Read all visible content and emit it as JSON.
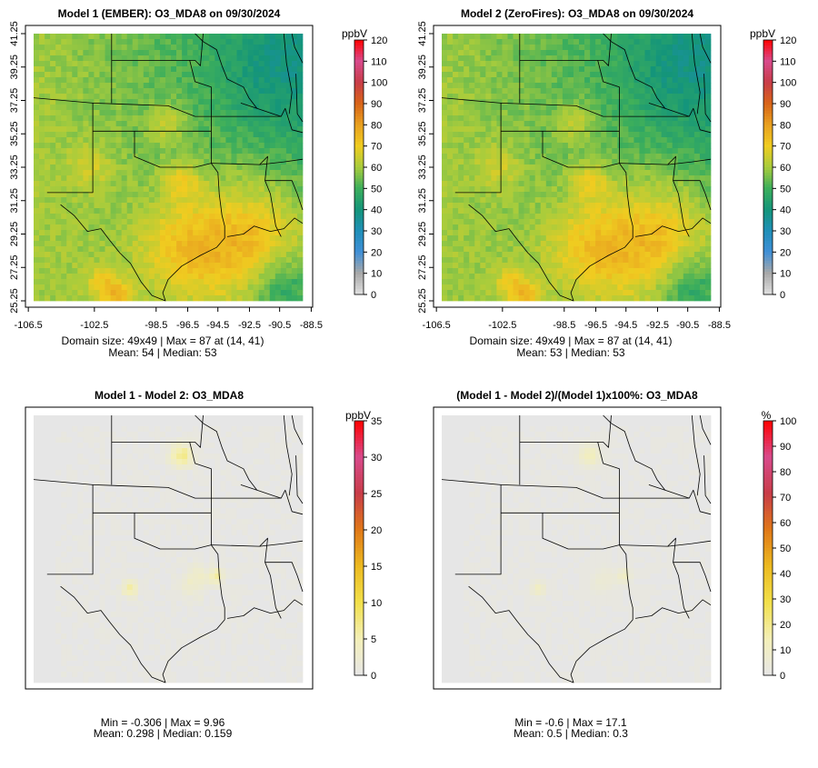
{
  "panels": [
    {
      "id": "m1",
      "title": "Model 1 (EMBER): O3_MDA8 on 09/30/2024",
      "unit": "ppbV",
      "colorbar": {
        "type": "ozone",
        "ticks": [
          "120",
          "110",
          "100",
          "90",
          "80",
          "70",
          "60",
          "50",
          "40",
          "30",
          "20",
          "10",
          "0"
        ]
      },
      "lat_ticks": [
        "41.25",
        "39.25",
        "37.25",
        "35.25",
        "33.25",
        "31.25",
        "29.25",
        "27.25",
        "25.25"
      ],
      "lon_ticks": [
        "-106.5",
        "-102.5",
        "-98.5",
        "-96.5",
        "-94.5",
        "-92.5",
        "-90.5",
        "-88.5"
      ],
      "stats": [
        "Domain size: 49x49 | Max = 87 at (14, 41)",
        "Mean: 54 |  Median: 53"
      ]
    },
    {
      "id": "m2",
      "title": "Model 2 (ZeroFires): O3_MDA8 on 09/30/2024",
      "unit": "ppbV",
      "colorbar": {
        "type": "ozone",
        "ticks": [
          "120",
          "110",
          "100",
          "90",
          "80",
          "70",
          "60",
          "50",
          "40",
          "30",
          "20",
          "10",
          "0"
        ]
      },
      "lat_ticks": [
        "41.25",
        "39.25",
        "37.25",
        "35.25",
        "33.25",
        "31.25",
        "29.25",
        "27.25",
        "25.25"
      ],
      "lon_ticks": [
        "-106.5",
        "-102.5",
        "-98.5",
        "-96.5",
        "-94.5",
        "-92.5",
        "-90.5",
        "-88.5"
      ],
      "stats": [
        "Domain size: 49x49 | Max = 87 at (14, 41)",
        "Mean: 53 |  Median: 53"
      ]
    },
    {
      "id": "diff",
      "title": "Model 1 - Model 2: O3_MDA8",
      "unit": "ppbV",
      "colorbar": {
        "type": "diff",
        "ticks": [
          "35",
          "30",
          "25",
          "20",
          "15",
          "10",
          "5",
          "0"
        ]
      },
      "lat_ticks": [],
      "lon_ticks": [],
      "stats": [
        "Min = -0.306 | Max = 9.96",
        "Mean: 0.298 |  Median: 0.159"
      ]
    },
    {
      "id": "pct",
      "title": "(Model 1 - Model 2)/(Model 1)x100%: O3_MDA8",
      "unit": "%",
      "colorbar": {
        "type": "diff",
        "ticks": [
          "100",
          "90",
          "80",
          "70",
          "60",
          "50",
          "40",
          "30",
          "20",
          "10",
          "0"
        ]
      },
      "lat_ticks": [],
      "lon_ticks": [],
      "stats": [
        "Min = -0.6 | Max = 17.1",
        "Mean: 0.5 |  Median: 0.3"
      ]
    }
  ],
  "colors": {
    "ozone_scale": [
      "#e0e0e0",
      "#a8a8a8",
      "#3f8fd6",
      "#1f8fb8",
      "#14957a",
      "#3cae5c",
      "#a8cc3c",
      "#f0cc20",
      "#e8a020",
      "#d86418",
      "#c83c48",
      "#d84a8c",
      "#ff0000"
    ],
    "diff_scale": [
      "#e6e6e6",
      "#f3efb8",
      "#f2e04a",
      "#ecba20",
      "#e07818",
      "#c83c48",
      "#d84a8c",
      "#ff0000"
    ],
    "background": "#e6e6e6"
  }
}
